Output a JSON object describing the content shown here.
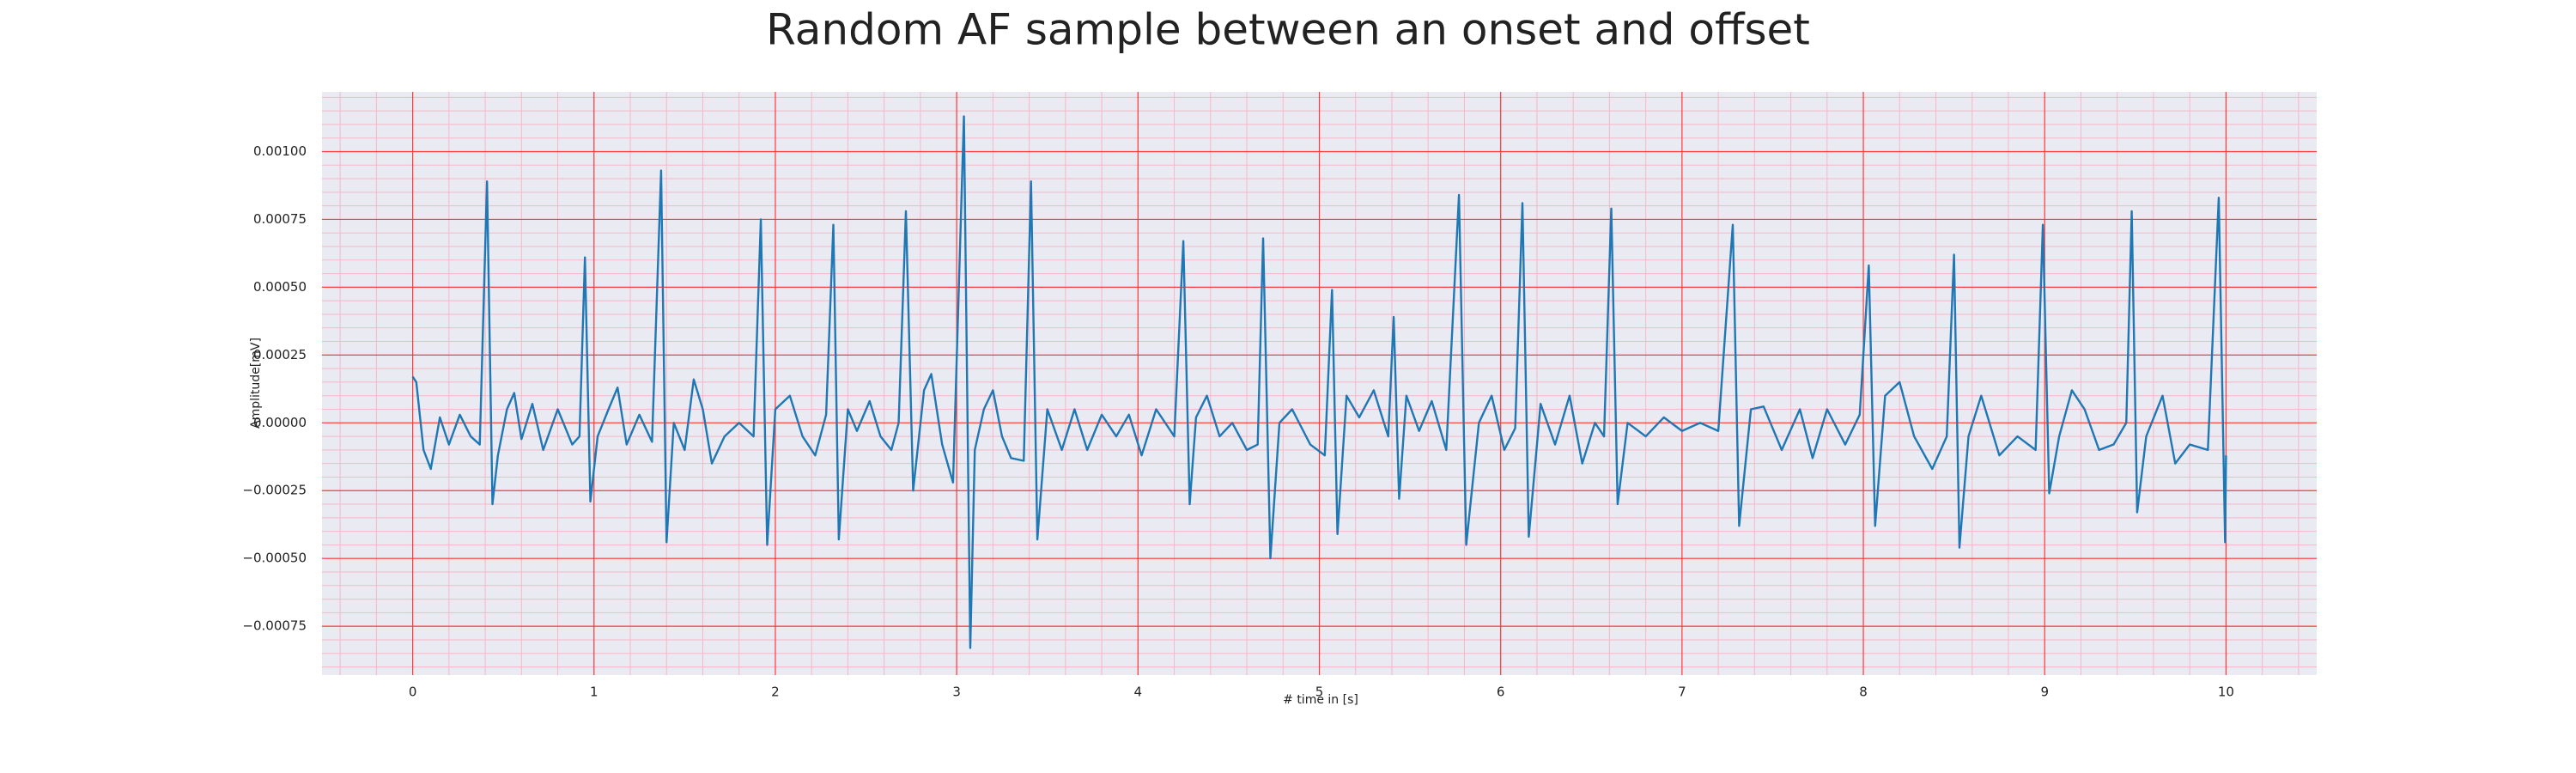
{
  "chart_data": {
    "type": "line",
    "title": "Random AF sample between an onset and offset",
    "xlabel": "# time in [s]",
    "ylabel": "Amplitude[mV]",
    "color": "#1f77b4",
    "grid": true,
    "grid_color": "#ff3b3b",
    "minor_grid_color": "#f6b7c6",
    "minor_divisions": 5,
    "background": "#eaeaf2",
    "xlim": [
      -0.5,
      10.5
    ],
    "ylim": [
      -0.00093,
      0.00122
    ],
    "xticks": [
      0,
      1,
      2,
      3,
      4,
      5,
      6,
      7,
      8,
      9,
      10
    ],
    "yticks": [
      {
        "value": -0.00075,
        "label": "−0.00075"
      },
      {
        "value": -0.0005,
        "label": "−0.00050"
      },
      {
        "value": -0.00025,
        "label": "−0.00025"
      },
      {
        "value": 0,
        "label": "0.00000"
      },
      {
        "value": 0.00025,
        "label": "0.00025"
      },
      {
        "value": 0.0005,
        "label": "0.00050"
      },
      {
        "value": 0.00075,
        "label": "0.00075"
      },
      {
        "value": 0.001,
        "label": "0.00100"
      }
    ],
    "x": [
      0.0,
      0.02,
      0.06,
      0.1,
      0.15,
      0.2,
      0.26,
      0.32,
      0.37,
      0.41,
      0.44,
      0.47,
      0.52,
      0.56,
      0.6,
      0.66,
      0.72,
      0.8,
      0.88,
      0.92,
      0.95,
      0.98,
      1.02,
      1.08,
      1.13,
      1.18,
      1.25,
      1.32,
      1.37,
      1.4,
      1.44,
      1.5,
      1.55,
      1.6,
      1.65,
      1.72,
      1.8,
      1.88,
      1.92,
      1.955,
      2.0,
      2.08,
      2.15,
      2.22,
      2.28,
      2.32,
      2.35,
      2.4,
      2.45,
      2.52,
      2.58,
      2.64,
      2.68,
      2.72,
      2.76,
      2.82,
      2.86,
      2.92,
      2.98,
      3.04,
      3.075,
      3.1,
      3.15,
      3.2,
      3.25,
      3.3,
      3.37,
      3.41,
      3.445,
      3.5,
      3.58,
      3.65,
      3.72,
      3.8,
      3.88,
      3.95,
      4.02,
      4.1,
      4.2,
      4.25,
      4.285,
      4.32,
      4.38,
      4.45,
      4.52,
      4.6,
      4.66,
      4.69,
      4.73,
      4.78,
      4.85,
      4.95,
      5.03,
      5.07,
      5.1,
      5.15,
      5.22,
      5.3,
      5.38,
      5.41,
      5.44,
      5.48,
      5.55,
      5.62,
      5.7,
      5.77,
      5.81,
      5.88,
      5.95,
      6.02,
      6.08,
      6.12,
      6.155,
      6.22,
      6.3,
      6.38,
      6.45,
      6.52,
      6.57,
      6.61,
      6.645,
      6.7,
      6.8,
      6.9,
      7.0,
      7.1,
      7.2,
      7.28,
      7.315,
      7.38,
      7.45,
      7.55,
      7.65,
      7.72,
      7.8,
      7.9,
      7.98,
      8.03,
      8.065,
      8.12,
      8.2,
      8.28,
      8.38,
      8.46,
      8.5,
      8.53,
      8.58,
      8.65,
      8.75,
      8.85,
      8.95,
      8.99,
      9.025,
      9.08,
      9.15,
      9.22,
      9.3,
      9.38,
      9.45,
      9.48,
      9.51,
      9.56,
      9.65,
      9.72,
      9.8,
      9.9,
      9.96,
      9.995,
      10.0
    ],
    "values": [
      0.00017,
      0.00015,
      -0.0001,
      -0.00017,
      2e-05,
      -8e-05,
      3e-05,
      -5e-05,
      -8e-05,
      0.00089,
      -0.0003,
      -0.00012,
      5e-05,
      0.00011,
      -6e-05,
      7e-05,
      -0.0001,
      5e-05,
      -8e-05,
      -5e-05,
      0.00061,
      -0.00029,
      -5e-05,
      5e-05,
      0.00013,
      -8e-05,
      3e-05,
      -7e-05,
      0.00093,
      -0.00044,
      0,
      -0.0001,
      0.00016,
      5e-05,
      -0.00015,
      -5e-05,
      0,
      -5e-05,
      0.00075,
      -0.00045,
      5e-05,
      0.0001,
      -5e-05,
      -0.00012,
      3e-05,
      0.00073,
      -0.00043,
      5e-05,
      -3e-05,
      8e-05,
      -5e-05,
      -0.0001,
      0,
      0.00078,
      -0.00025,
      0.00012,
      0.00018,
      -8e-05,
      -0.00022,
      0.00113,
      -0.00083,
      -0.0001,
      5e-05,
      0.00012,
      -5e-05,
      -0.00013,
      -0.00014,
      0.00089,
      -0.00043,
      5e-05,
      -0.0001,
      5e-05,
      -0.0001,
      3e-05,
      -5e-05,
      3e-05,
      -0.00012,
      5e-05,
      -5e-05,
      0.00067,
      -0.0003,
      2e-05,
      0.0001,
      -5e-05,
      0,
      -0.0001,
      -8e-05,
      0.00068,
      -0.0005,
      0,
      5e-05,
      -8e-05,
      -0.00012,
      0.00049,
      -0.00041,
      0.0001,
      2e-05,
      0.00012,
      -5e-05,
      0.00039,
      -0.00028,
      0.0001,
      -3e-05,
      8e-05,
      -0.0001,
      0.00084,
      -0.00045,
      0,
      0.0001,
      -0.0001,
      -2e-05,
      0.00081,
      -0.00042,
      7e-05,
      -8e-05,
      0.0001,
      -0.00015,
      0,
      -5e-05,
      0.00079,
      -0.0003,
      0,
      -5e-05,
      2e-05,
      -3e-05,
      0,
      -3e-05,
      0.00073,
      -0.00038,
      5e-05,
      6e-05,
      -0.0001,
      5e-05,
      -0.00013,
      5e-05,
      -8e-05,
      3e-05,
      0.00058,
      -0.00038,
      0.0001,
      0.00015,
      -5e-05,
      -0.00017,
      -5e-05,
      0.00062,
      -0.00046,
      -5e-05,
      0.0001,
      -0.00012,
      -5e-05,
      -0.0001,
      0.00073,
      -0.00026,
      -5e-05,
      0.00012,
      5e-05,
      -0.0001,
      -8e-05,
      0,
      0.00078,
      -0.00033,
      -5e-05,
      0.0001,
      -0.00015,
      -8e-05,
      -0.0001,
      0.00083,
      -0.00044,
      -0.00012
    ]
  }
}
